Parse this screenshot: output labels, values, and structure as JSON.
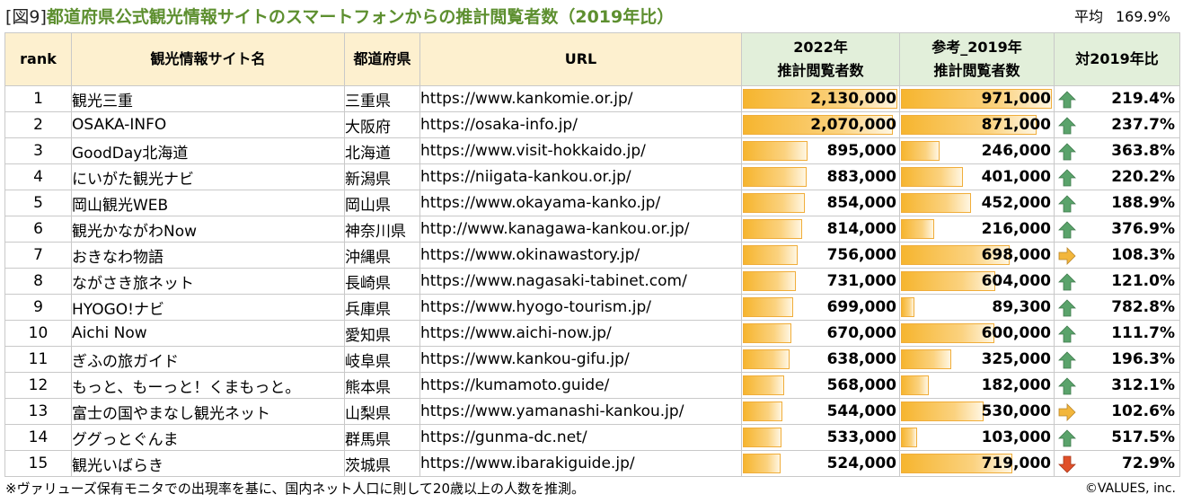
{
  "title": {
    "fig_label": "[図9]",
    "main": "都道府県公式観光情報サイトのスマートフォンからの推計閲覧者数（2019年比）"
  },
  "average": {
    "label": "平均",
    "value": "169.9%"
  },
  "table": {
    "headers": {
      "rank": "rank",
      "site_name": "観光情報サイト名",
      "prefecture": "都道府県",
      "url": "URL",
      "y2022_line1": "2022年",
      "y2022_line2": "推計閲覧者数",
      "y2019_line1": "参考_2019年",
      "y2019_line2": "推計閲覧者数",
      "ratio": "対2019年比"
    },
    "rows": [
      {
        "rank": "1",
        "name": "観光三重",
        "pref": "三重県",
        "url": "https://www.kankomie.or.jp/",
        "v2022": "2,130,000",
        "v2019": "971,000",
        "ratio": "219.4%",
        "trend": "up"
      },
      {
        "rank": "2",
        "name": "OSAKA-INFO",
        "pref": "大阪府",
        "url": "https://osaka-info.jp/",
        "v2022": "2,070,000",
        "v2019": "871,000",
        "ratio": "237.7%",
        "trend": "up"
      },
      {
        "rank": "3",
        "name": "GoodDay北海道",
        "pref": "北海道",
        "url": "https://www.visit-hokkaido.jp/",
        "v2022": "895,000",
        "v2019": "246,000",
        "ratio": "363.8%",
        "trend": "up"
      },
      {
        "rank": "4",
        "name": "にいがた観光ナビ",
        "pref": "新潟県",
        "url": "https://niigata-kankou.or.jp/",
        "v2022": "883,000",
        "v2019": "401,000",
        "ratio": "220.2%",
        "trend": "up"
      },
      {
        "rank": "5",
        "name": "岡山観光WEB",
        "pref": "岡山県",
        "url": "https://www.okayama-kanko.jp/",
        "v2022": "854,000",
        "v2019": "452,000",
        "ratio": "188.9%",
        "trend": "up"
      },
      {
        "rank": "6",
        "name": "観光かながわNow",
        "pref": "神奈川県",
        "url": "http://www.kanagawa-kankou.or.jp/",
        "v2022": "814,000",
        "v2019": "216,000",
        "ratio": "376.9%",
        "trend": "up"
      },
      {
        "rank": "7",
        "name": "おきなわ物語",
        "pref": "沖縄県",
        "url": "https://www.okinawastory.jp/",
        "v2022": "756,000",
        "v2019": "698,000",
        "ratio": "108.3%",
        "trend": "flat"
      },
      {
        "rank": "8",
        "name": "ながさき旅ネット",
        "pref": "長崎県",
        "url": "https://www.nagasaki-tabinet.com/",
        "v2022": "731,000",
        "v2019": "604,000",
        "ratio": "121.0%",
        "trend": "up"
      },
      {
        "rank": "9",
        "name": "HYOGO!ナビ",
        "pref": "兵庫県",
        "url": "https://www.hyogo-tourism.jp/",
        "v2022": "699,000",
        "v2019": "89,300",
        "ratio": "782.8%",
        "trend": "up"
      },
      {
        "rank": "10",
        "name": "Aichi Now",
        "pref": "愛知県",
        "url": "https://www.aichi-now.jp/",
        "v2022": "670,000",
        "v2019": "600,000",
        "ratio": "111.7%",
        "trend": "up"
      },
      {
        "rank": "11",
        "name": "ぎふの旅ガイド",
        "pref": "岐阜県",
        "url": "https://www.kankou-gifu.jp/",
        "v2022": "638,000",
        "v2019": "325,000",
        "ratio": "196.3%",
        "trend": "up"
      },
      {
        "rank": "12",
        "name": "もっと、もーっと！くまもっと。",
        "pref": "熊本県",
        "url": "https://kumamoto.guide/",
        "v2022": "568,000",
        "v2019": "182,000",
        "ratio": "312.1%",
        "trend": "up"
      },
      {
        "rank": "13",
        "name": "富士の国やまなし観光ネット",
        "pref": "山梨県",
        "url": "https://www.yamanashi-kankou.jp/",
        "v2022": "544,000",
        "v2019": "530,000",
        "ratio": "102.6%",
        "trend": "flat"
      },
      {
        "rank": "14",
        "name": "ググっとぐんま",
        "pref": "群馬県",
        "url": "https://gunma-dc.net/",
        "v2022": "533,000",
        "v2019": "103,000",
        "ratio": "517.5%",
        "trend": "up"
      },
      {
        "rank": "15",
        "name": "観光いばらき",
        "pref": "茨城県",
        "url": "https://www.ibarakiguide.jp/",
        "v2022": "524,000",
        "v2019": "719,000",
        "ratio": "72.9%",
        "trend": "down"
      }
    ]
  },
  "footnote": "※ヴァリューズ保有モニタでの出現率を基に、国内ネット人口に則して20歳以上の人数を推測。",
  "copyright": "©VALUES, inc.",
  "colors": {
    "title_green": "#5d8f2f",
    "header_yellow": "#fdf0cf",
    "header_green": "#e2efda",
    "bar_orange": "#f6b52f",
    "arrow_up_green": "#5aa36b",
    "arrow_flat_orange": "#f2b63c",
    "arrow_down_red": "#e0502a"
  },
  "icons": {
    "up": "arrow-up-icon",
    "flat": "arrow-right-icon",
    "down": "arrow-down-icon"
  }
}
